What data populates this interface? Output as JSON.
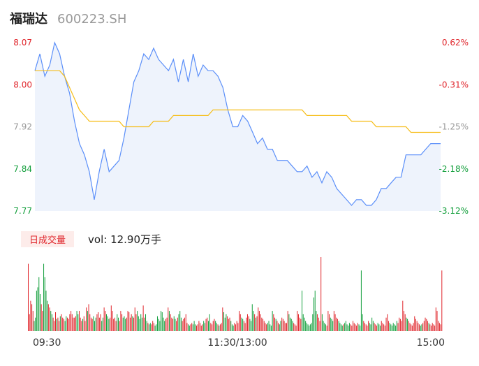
{
  "header": {
    "name": "福瑞达",
    "code": "600223.SH"
  },
  "volume_panel": {
    "tab_label": "日成交量",
    "vol_label": "vol:",
    "vol_value": "12.90万手"
  },
  "colors": {
    "price": "#5b8ff9",
    "avg": "#f6bd16",
    "up": "#e0252b",
    "down": "#139f3c",
    "neutral": "#999999",
    "area": "#eef3fc"
  },
  "chart_data": [
    {
      "type": "line",
      "title": "",
      "y_ticks": [
        "8.07",
        "8.00",
        "7.92",
        "7.84",
        "7.77"
      ],
      "y_tick_colors": [
        "#e0252b",
        "#e0252b",
        "#999999",
        "#139f3c",
        "#139f3c"
      ],
      "pct_ticks": [
        "0.62%",
        "-0.31%",
        "-1.25%",
        "-2.18%",
        "-3.12%"
      ],
      "ylim": [
        7.77,
        8.07
      ],
      "x_ticks": [
        "09:30",
        "11:30/13:00",
        "15:00"
      ],
      "series": [
        {
          "values": [
            8.02,
            8.05,
            8.01,
            8.03,
            8.07,
            8.05,
            8.01,
            7.98,
            7.93,
            7.89,
            7.87,
            7.84,
            7.79,
            7.84,
            7.88,
            7.84,
            7.85,
            7.86,
            7.9,
            7.95,
            8.0,
            8.02,
            8.05,
            8.04,
            8.06,
            8.04,
            8.03,
            8.02,
            8.04,
            8.0,
            8.04,
            8.0,
            8.05,
            8.01,
            8.03,
            8.02,
            8.02,
            8.01,
            7.99,
            7.95,
            7.92,
            7.92,
            7.94,
            7.93,
            7.91,
            7.89,
            7.9,
            7.88,
            7.88,
            7.86,
            7.86,
            7.86,
            7.85,
            7.84,
            7.84,
            7.85,
            7.83,
            7.84,
            7.82,
            7.84,
            7.83,
            7.81,
            7.8,
            7.79,
            7.78,
            7.79,
            7.79,
            7.78,
            7.78,
            7.79,
            7.81,
            7.81,
            7.82,
            7.83,
            7.83,
            7.87,
            7.87,
            7.87,
            7.87,
            7.88,
            7.89,
            7.89,
            7.89
          ]
        },
        {
          "values": [
            8.02,
            8.02,
            8.02,
            8.02,
            8.02,
            8.02,
            8.01,
            7.99,
            7.97,
            7.95,
            7.94,
            7.93,
            7.93,
            7.93,
            7.93,
            7.93,
            7.93,
            7.93,
            7.92,
            7.92,
            7.92,
            7.92,
            7.92,
            7.92,
            7.93,
            7.93,
            7.93,
            7.93,
            7.94,
            7.94,
            7.94,
            7.94,
            7.94,
            7.94,
            7.94,
            7.94,
            7.95,
            7.95,
            7.95,
            7.95,
            7.95,
            7.95,
            7.95,
            7.95,
            7.95,
            7.95,
            7.95,
            7.95,
            7.95,
            7.95,
            7.95,
            7.95,
            7.95,
            7.95,
            7.95,
            7.94,
            7.94,
            7.94,
            7.94,
            7.94,
            7.94,
            7.94,
            7.94,
            7.94,
            7.93,
            7.93,
            7.93,
            7.93,
            7.93,
            7.92,
            7.92,
            7.92,
            7.92,
            7.92,
            7.92,
            7.92,
            7.91,
            7.91,
            7.91,
            7.91,
            7.91,
            7.91,
            7.91
          ]
        }
      ]
    },
    {
      "type": "bar",
      "title": "",
      "values": [
        100,
        25,
        45,
        40,
        30,
        15,
        20,
        60,
        65,
        80,
        55,
        40,
        30,
        100,
        80,
        60,
        45,
        40,
        35,
        30,
        25,
        20,
        15,
        28,
        18,
        20,
        15,
        22,
        25,
        20,
        18,
        15,
        22,
        20,
        18,
        25,
        30,
        25,
        20,
        20,
        22,
        30,
        25,
        30,
        20,
        15,
        18,
        22,
        15,
        35,
        30,
        40,
        25,
        20,
        18,
        22,
        15,
        20,
        25,
        28,
        20,
        25,
        15,
        20,
        35,
        30,
        25,
        22,
        18,
        20,
        38,
        30,
        18,
        20,
        15,
        25,
        20,
        15,
        30,
        25,
        20,
        22,
        18,
        20,
        30,
        28,
        20,
        25,
        22,
        20,
        35,
        25,
        30,
        22,
        18,
        25,
        20,
        38,
        20,
        25,
        15,
        12,
        10,
        12,
        10,
        15,
        12,
        8,
        10,
        22,
        18,
        15,
        30,
        28,
        20,
        15,
        18,
        20,
        35,
        30,
        25,
        20,
        18,
        22,
        18,
        15,
        20,
        25,
        30,
        20,
        15,
        18,
        20,
        25,
        12,
        10,
        8,
        10,
        12,
        10,
        15,
        10,
        8,
        10,
        15,
        12,
        8,
        10,
        15,
        12,
        18,
        20,
        15,
        25,
        12,
        10,
        15,
        18,
        15,
        12,
        10,
        8,
        10,
        12,
        35,
        28,
        20,
        25,
        22,
        18,
        20,
        15,
        10,
        8,
        12,
        10,
        15,
        12,
        30,
        25,
        20,
        18,
        15,
        12,
        20,
        25,
        22,
        18,
        15,
        40,
        30,
        25,
        20,
        22,
        35,
        30,
        25,
        20,
        18,
        15,
        12,
        10,
        12,
        15,
        10,
        8,
        30,
        25,
        20,
        18,
        15,
        12,
        10,
        15,
        20,
        18,
        15,
        12,
        12,
        30,
        25,
        20,
        18,
        15,
        12,
        10,
        8,
        30,
        25,
        20,
        18,
        60,
        25,
        20,
        15,
        12,
        10,
        8,
        10,
        12,
        25,
        50,
        60,
        30,
        25,
        20,
        15,
        110,
        25,
        15,
        12,
        10,
        8,
        30,
        25,
        20,
        18,
        15,
        30,
        25,
        20,
        18,
        15,
        12,
        10,
        8,
        10,
        12,
        15,
        10,
        8,
        12,
        10,
        8,
        15,
        12,
        10,
        8,
        12,
        10,
        8,
        90,
        25,
        15,
        12,
        10,
        8,
        15,
        12,
        10,
        20,
        15,
        12,
        10,
        8,
        12,
        10,
        8,
        15,
        12,
        10,
        8,
        20,
        25,
        15,
        12,
        10,
        8,
        12,
        10,
        8,
        15,
        12,
        20,
        18,
        15,
        45,
        30,
        25,
        20,
        18,
        15,
        12,
        10,
        8,
        12,
        22,
        18,
        15,
        12,
        10,
        8,
        10,
        12,
        15,
        20,
        18,
        15,
        12,
        10,
        8,
        12,
        10,
        8,
        35,
        30,
        15,
        12,
        10,
        90
      ],
      "colors": [
        "up",
        "up",
        "up",
        "up",
        "up",
        "down",
        "down",
        "down",
        "down",
        "down",
        "down",
        "up",
        "up",
        "down",
        "down",
        "down",
        "down",
        "up",
        "up",
        "down",
        "down",
        "up",
        "up",
        "up",
        "down",
        "up",
        "up",
        "down",
        "up",
        "up",
        "up",
        "down",
        "down",
        "up",
        "up",
        "up",
        "up",
        "up",
        "up",
        "up",
        "up",
        "down",
        "down",
        "up",
        "up",
        "up",
        "down",
        "up",
        "up",
        "up",
        "down",
        "up",
        "up",
        "up",
        "up",
        "down",
        "down",
        "down",
        "up",
        "up",
        "up",
        "up",
        "down",
        "down",
        "up",
        "up",
        "down",
        "down",
        "down",
        "up",
        "up",
        "up",
        "up",
        "up",
        "up",
        "down",
        "down",
        "up",
        "up",
        "up",
        "down",
        "down",
        "down",
        "up",
        "up",
        "up",
        "up",
        "up",
        "down",
        "up",
        "up",
        "up",
        "down",
        "down",
        "down",
        "down",
        "down",
        "up",
        "up",
        "down",
        "down",
        "up",
        "down",
        "down",
        "up",
        "up",
        "up",
        "down",
        "down",
        "down",
        "down",
        "down",
        "down",
        "down",
        "down",
        "down",
        "up",
        "up",
        "up",
        "down",
        "up",
        "up",
        "up",
        "down",
        "down",
        "up",
        "up",
        "down",
        "down",
        "down",
        "up",
        "up",
        "up",
        "up",
        "up",
        "down",
        "down",
        "up",
        "up",
        "down",
        "down",
        "down",
        "up",
        "up",
        "up",
        "up",
        "up",
        "up",
        "down",
        "down",
        "up",
        "up",
        "down",
        "down",
        "up",
        "up",
        "up",
        "up",
        "down",
        "down",
        "up",
        "down",
        "up",
        "up",
        "up",
        "down",
        "down",
        "down",
        "up",
        "up",
        "up",
        "down",
        "down",
        "down",
        "up",
        "up",
        "up",
        "up",
        "up",
        "up",
        "down",
        "down",
        "up",
        "up",
        "up",
        "up",
        "up",
        "down",
        "down",
        "down",
        "down",
        "up",
        "down",
        "up",
        "up",
        "up",
        "up",
        "up",
        "up",
        "up",
        "up",
        "up",
        "down",
        "down",
        "down",
        "down",
        "down",
        "up",
        "up",
        "down",
        "up",
        "up",
        "down",
        "down",
        "up",
        "up",
        "up",
        "up",
        "up",
        "up",
        "down",
        "down",
        "down",
        "down",
        "up",
        "up",
        "up",
        "up",
        "up",
        "up",
        "up",
        "down",
        "down",
        "down",
        "down",
        "down",
        "down",
        "down",
        "down",
        "down",
        "down",
        "down",
        "down",
        "down",
        "up",
        "up",
        "up",
        "up",
        "down",
        "down",
        "down",
        "down",
        "up",
        "up",
        "up",
        "down",
        "down",
        "down",
        "up",
        "up",
        "up",
        "up",
        "down",
        "down",
        "down",
        "down",
        "up",
        "down",
        "down",
        "down",
        "down",
        "down",
        "up",
        "up",
        "up",
        "up",
        "up",
        "up",
        "up",
        "down",
        "down",
        "down",
        "down",
        "up",
        "up",
        "up",
        "up",
        "up",
        "down",
        "down",
        "down",
        "down",
        "up",
        "up",
        "up",
        "down",
        "down",
        "down",
        "up",
        "up",
        "up",
        "up",
        "up",
        "up",
        "up",
        "down",
        "down",
        "down",
        "down",
        "down",
        "down",
        "down",
        "up",
        "up",
        "up",
        "up",
        "up",
        "up",
        "up",
        "down",
        "down",
        "up",
        "up",
        "up",
        "up",
        "up",
        "up",
        "up",
        "up",
        "up",
        "up",
        "down",
        "down",
        "up",
        "up",
        "up",
        "up",
        "up",
        "down",
        "up",
        "up",
        "up",
        "up",
        "up",
        "up",
        "up",
        "up"
      ]
    }
  ]
}
